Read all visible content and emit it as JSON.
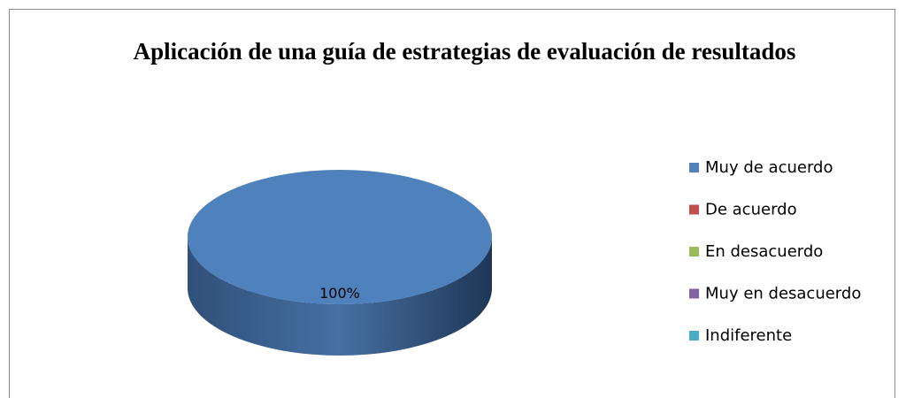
{
  "chart_data": {
    "type": "pie",
    "title": "Aplicación de una guía de estrategias de evaluación  de resultados",
    "categories": [
      "Muy de acuerdo",
      "De acuerdo",
      "En desacuerdo",
      "Muy en desacuerdo",
      "Indiferente"
    ],
    "values": [
      100,
      0,
      0,
      0,
      0
    ],
    "value_labels": [
      "100%",
      null,
      null,
      null,
      null
    ],
    "colors": [
      "#4f81bd",
      "#c0504d",
      "#9bbb59",
      "#8064a2",
      "#4bacc6"
    ],
    "legend": "right"
  }
}
